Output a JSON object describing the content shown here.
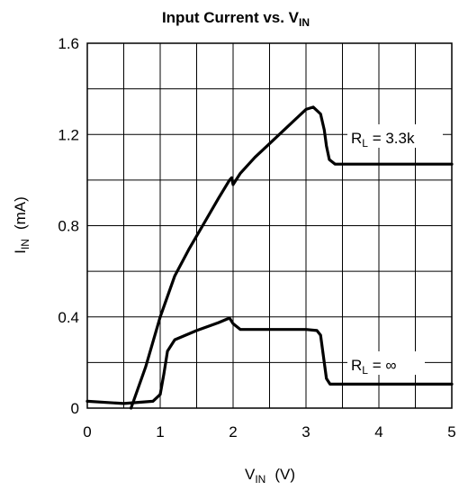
{
  "chart_data": {
    "type": "line",
    "title": "Input Current vs. V",
    "title_sub": "IN",
    "xlabel": "V",
    "xlabel_sub": "IN",
    "xlabel_unit": "(V)",
    "ylabel": "I",
    "ylabel_sub": "IN",
    "ylabel_unit": "(mA)",
    "xlim": [
      0,
      5
    ],
    "ylim": [
      0,
      1.6
    ],
    "x_ticks": [
      0,
      1,
      2,
      3,
      4,
      5
    ],
    "x_tick_labels": [
      "0",
      "1",
      "2",
      "3",
      "4",
      "5"
    ],
    "y_ticks": [
      0,
      0.4,
      0.8,
      1.2,
      1.6
    ],
    "y_tick_labels": [
      "0",
      "0.4",
      "0.8",
      "1.2",
      "1.6"
    ],
    "x_grid_step": 0.5,
    "y_grid_step": 0.2,
    "grid": true,
    "series": [
      {
        "name": "R = 3.3k",
        "label_main": "R",
        "label_sub": "L",
        "label_rest": " = 3.3k",
        "points": [
          [
            0.6,
            0
          ],
          [
            0.8,
            0.18
          ],
          [
            1.0,
            0.4
          ],
          [
            1.2,
            0.58
          ],
          [
            1.4,
            0.7
          ],
          [
            1.6,
            0.81
          ],
          [
            1.8,
            0.92
          ],
          [
            1.95,
            1.0
          ],
          [
            1.98,
            1.01
          ],
          [
            2.0,
            0.98
          ],
          [
            2.1,
            1.03
          ],
          [
            2.3,
            1.1
          ],
          [
            2.5,
            1.16
          ],
          [
            2.7,
            1.22
          ],
          [
            2.9,
            1.28
          ],
          [
            3.0,
            1.31
          ],
          [
            3.1,
            1.32
          ],
          [
            3.2,
            1.29
          ],
          [
            3.25,
            1.22
          ],
          [
            3.28,
            1.15
          ],
          [
            3.32,
            1.09
          ],
          [
            3.4,
            1.07
          ],
          [
            5.0,
            1.07
          ]
        ]
      },
      {
        "name": "R = ∞",
        "label_main": "R",
        "label_sub": "L",
        "label_rest": " = ∞",
        "points": [
          [
            0,
            0.03
          ],
          [
            0.5,
            0.02
          ],
          [
            0.9,
            0.03
          ],
          [
            1.0,
            0.06
          ],
          [
            1.05,
            0.15
          ],
          [
            1.1,
            0.25
          ],
          [
            1.2,
            0.3
          ],
          [
            1.5,
            0.34
          ],
          [
            1.8,
            0.375
          ],
          [
            1.95,
            0.395
          ],
          [
            2.0,
            0.37
          ],
          [
            2.1,
            0.345
          ],
          [
            2.5,
            0.345
          ],
          [
            3.0,
            0.345
          ],
          [
            3.15,
            0.34
          ],
          [
            3.2,
            0.32
          ],
          [
            3.25,
            0.2
          ],
          [
            3.28,
            0.13
          ],
          [
            3.33,
            0.105
          ],
          [
            5.0,
            0.105
          ]
        ]
      }
    ]
  }
}
